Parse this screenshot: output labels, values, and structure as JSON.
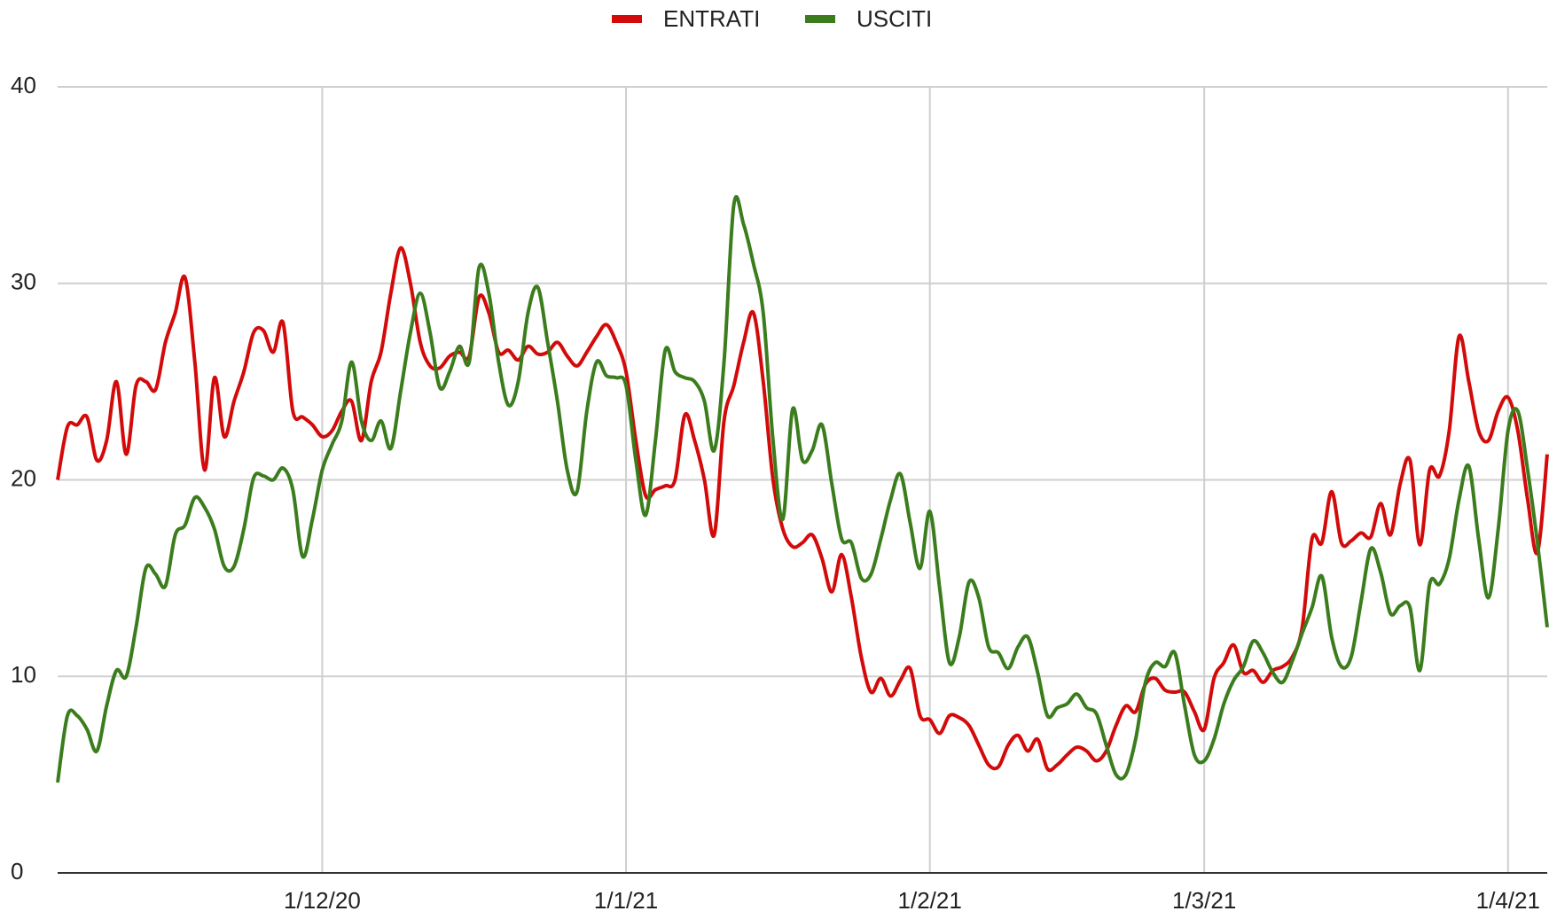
{
  "chart_data": {
    "type": "line",
    "x": [
      "4/11/20",
      "5/11/20",
      "6/11/20",
      "7/11/20",
      "8/11/20",
      "9/11/20",
      "10/11/20",
      "11/11/20",
      "12/11/20",
      "13/11/20",
      "14/11/20",
      "15/11/20",
      "16/11/20",
      "17/11/20",
      "18/11/20",
      "19/11/20",
      "20/11/20",
      "21/11/20",
      "22/11/20",
      "23/11/20",
      "24/11/20",
      "25/11/20",
      "26/11/20",
      "27/11/20",
      "28/11/20",
      "29/11/20",
      "30/11/20",
      "1/12/20",
      "2/12/20",
      "3/12/20",
      "4/12/20",
      "5/12/20",
      "6/12/20",
      "7/12/20",
      "8/12/20",
      "9/12/20",
      "10/12/20",
      "11/12/20",
      "12/12/20",
      "13/12/20",
      "14/12/20",
      "15/12/20",
      "16/12/20",
      "17/12/20",
      "18/12/20",
      "19/12/20",
      "20/12/20",
      "21/12/20",
      "22/12/20",
      "23/12/20",
      "24/12/20",
      "25/12/20",
      "26/12/20",
      "27/12/20",
      "28/12/20",
      "29/12/20",
      "30/12/20",
      "31/12/20",
      "1/1/21",
      "2/1/21",
      "3/1/21",
      "4/1/21",
      "5/1/21",
      "6/1/21",
      "7/1/21",
      "8/1/21",
      "9/1/21",
      "10/1/21",
      "11/1/21",
      "12/1/21",
      "13/1/21",
      "14/1/21",
      "15/1/21",
      "16/1/21",
      "17/1/21",
      "18/1/21",
      "19/1/21",
      "20/1/21",
      "21/1/21",
      "22/1/21",
      "23/1/21",
      "24/1/21",
      "25/1/21",
      "26/1/21",
      "27/1/21",
      "28/1/21",
      "29/1/21",
      "30/1/21",
      "31/1/21",
      "1/2/21",
      "2/2/21",
      "3/2/21",
      "4/2/21",
      "5/2/21",
      "6/2/21",
      "7/2/21",
      "8/2/21",
      "9/2/21",
      "10/2/21",
      "11/2/21",
      "12/2/21",
      "13/2/21",
      "14/2/21",
      "15/2/21",
      "16/2/21",
      "17/2/21",
      "18/2/21",
      "19/2/21",
      "20/2/21",
      "21/2/21",
      "22/2/21",
      "23/2/21",
      "24/2/21",
      "25/2/21",
      "26/2/21",
      "27/2/21",
      "28/2/21",
      "1/3/21",
      "2/3/21",
      "3/3/21",
      "4/3/21",
      "5/3/21",
      "6/3/21",
      "7/3/21",
      "8/3/21",
      "9/3/21",
      "10/3/21",
      "11/3/21",
      "12/3/21",
      "13/3/21",
      "14/3/21",
      "15/3/21",
      "16/3/21",
      "17/3/21",
      "18/3/21",
      "19/3/21",
      "20/3/21",
      "21/3/21",
      "22/3/21",
      "23/3/21",
      "24/3/21",
      "25/3/21",
      "26/3/21",
      "27/3/21",
      "28/3/21",
      "29/3/21",
      "30/3/21",
      "31/3/21",
      "1/4/21",
      "2/4/21",
      "3/4/21",
      "4/4/21",
      "5/4/21"
    ],
    "series": [
      {
        "name": "ENTRATI",
        "color": "#d30a0a",
        "values": [
          20,
          22.7,
          22.8,
          23.2,
          21,
          22,
          25,
          21.3,
          24.8,
          25,
          24.6,
          27,
          28.5,
          30.3,
          26,
          20.5,
          25.2,
          22.2,
          24,
          25.5,
          27.5,
          27.6,
          26.5,
          28,
          23.5,
          23.2,
          22.8,
          22.2,
          22.5,
          23.5,
          24,
          22,
          25,
          26.5,
          29.5,
          31.8,
          30,
          27,
          25.8,
          25.7,
          26.3,
          26.5,
          26.3,
          29.3,
          28.5,
          26.5,
          26.6,
          26.1,
          26.8,
          26.4,
          26.5,
          27,
          26.3,
          25.8,
          26.5,
          27.3,
          27.9,
          27,
          25.5,
          22,
          19.2,
          19.5,
          19.7,
          20,
          23.3,
          22,
          20,
          17.2,
          23,
          24.8,
          27,
          28.5,
          25,
          20,
          17.5,
          16.6,
          16.8,
          17.2,
          16,
          14.3,
          16.2,
          14,
          11,
          9.2,
          9.9,
          9,
          9.8,
          10.4,
          8,
          7.8,
          7.1,
          8,
          7.9,
          7.5,
          6.5,
          5.5,
          5.4,
          6.5,
          7,
          6.2,
          6.8,
          5.3,
          5.5,
          6,
          6.4,
          6.2,
          5.7,
          6.2,
          7.5,
          8.5,
          8.2,
          9.6,
          9.9,
          9.3,
          9.2,
          9.2,
          8.2,
          7.3,
          9.9,
          10.7,
          11.6,
          10.2,
          10.3,
          9.7,
          10.3,
          10.5,
          11,
          12.5,
          17,
          16.8,
          19.4,
          16.8,
          16.9,
          17.3,
          17.1,
          18.8,
          17.2,
          19.8,
          21,
          16.7,
          20.5,
          20.2,
          22.5,
          27.3,
          25,
          22.5,
          22,
          23.5,
          24.2,
          22.5,
          19,
          16.3,
          21.3
        ]
      },
      {
        "name": "USCITI",
        "color": "#3b7d1d",
        "values": [
          4.6,
          8,
          8,
          7.3,
          6.2,
          8.5,
          10.3,
          10,
          12.5,
          15.5,
          15.2,
          14.6,
          17.2,
          17.7,
          19.1,
          18.6,
          17.5,
          15.6,
          15.6,
          17.5,
          20.1,
          20.2,
          20,
          20.6,
          19.5,
          16.1,
          18,
          20.5,
          21.8,
          23,
          26,
          23,
          22,
          23,
          21.6,
          24.5,
          27.5,
          29.5,
          27.5,
          24.7,
          25.5,
          26.8,
          26,
          30.8,
          29.5,
          26,
          23.8,
          25,
          28.5,
          29.8,
          27,
          24,
          20.5,
          19.4,
          23.5,
          26,
          25.3,
          25.2,
          24.8,
          21,
          18.2,
          22,
          26.6,
          25.5,
          25.2,
          25,
          24,
          21.5,
          26,
          34,
          33,
          31,
          28.5,
          22,
          18,
          23.6,
          21,
          21.5,
          22.8,
          19.8,
          17,
          16.8,
          15,
          15.2,
          17,
          19,
          20.3,
          17.8,
          15.5,
          18.4,
          14.5,
          10.7,
          12,
          14.8,
          14,
          11.5,
          11.2,
          10.4,
          11.5,
          12,
          10.2,
          8,
          8.4,
          8.6,
          9.1,
          8.4,
          8.1,
          6.5,
          5,
          5,
          6.8,
          9.7,
          10.7,
          10.5,
          11.2,
          8.5,
          6,
          5.7,
          6.8,
          8.6,
          9.8,
          10.5,
          11.8,
          11.2,
          10.2,
          9.7,
          10.8,
          12.2,
          13.5,
          15.1,
          12,
          10.5,
          11,
          13.8,
          16.5,
          15.3,
          13.2,
          13.6,
          13.5,
          10.3,
          14.7,
          14.7,
          16,
          19,
          20.7,
          17,
          14,
          17.5,
          22.5,
          23.5,
          20.5,
          16.8,
          12.5
        ]
      }
    ],
    "xticks": [
      "1/12/20",
      "1/1/21",
      "1/2/21",
      "1/3/21",
      "1/4/21"
    ],
    "ylim": [
      0,
      40
    ],
    "yticks": [
      0,
      10,
      20,
      30,
      40
    ],
    "grid": true,
    "legend": "top"
  }
}
